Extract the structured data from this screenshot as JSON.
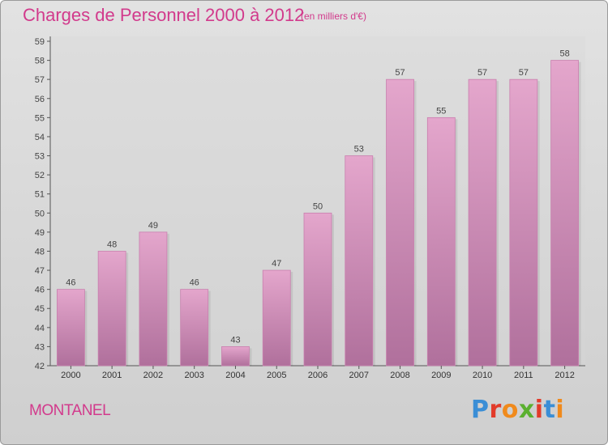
{
  "header": {
    "title": "Charges de Personnel 2000 à 2012",
    "subtitle": "(en milliers d'€)"
  },
  "footer": {
    "city": "MONTANEL",
    "brand": "Proxiti",
    "brand_colors": [
      "#3a8ed6",
      "#e23b2a",
      "#f08a1c",
      "#5bb030",
      "#e23b2a",
      "#3a8ed6",
      "#f08a1c"
    ]
  },
  "colors": {
    "accent": "#d23a8c",
    "bar_top": "#e4a6cc",
    "bar_bottom": "#b0709c",
    "bar_edge": "#c97fae"
  },
  "chart_data": {
    "type": "bar",
    "title": "Charges de Personnel 2000 à 2012",
    "subtitle": "(en milliers d'€)",
    "categories": [
      "2000",
      "2001",
      "2002",
      "2003",
      "2004",
      "2005",
      "2006",
      "2007",
      "2008",
      "2009",
      "2010",
      "2011",
      "2012"
    ],
    "values": [
      46,
      48,
      49,
      46,
      43,
      47,
      50,
      53,
      57,
      55,
      57,
      57,
      58
    ],
    "ylim": [
      42,
      59
    ],
    "yticks": [
      42,
      43,
      44,
      45,
      46,
      47,
      48,
      49,
      50,
      51,
      52,
      53,
      54,
      55,
      56,
      57,
      58,
      59
    ],
    "grid": false,
    "data_labels": true,
    "legend": "none"
  }
}
